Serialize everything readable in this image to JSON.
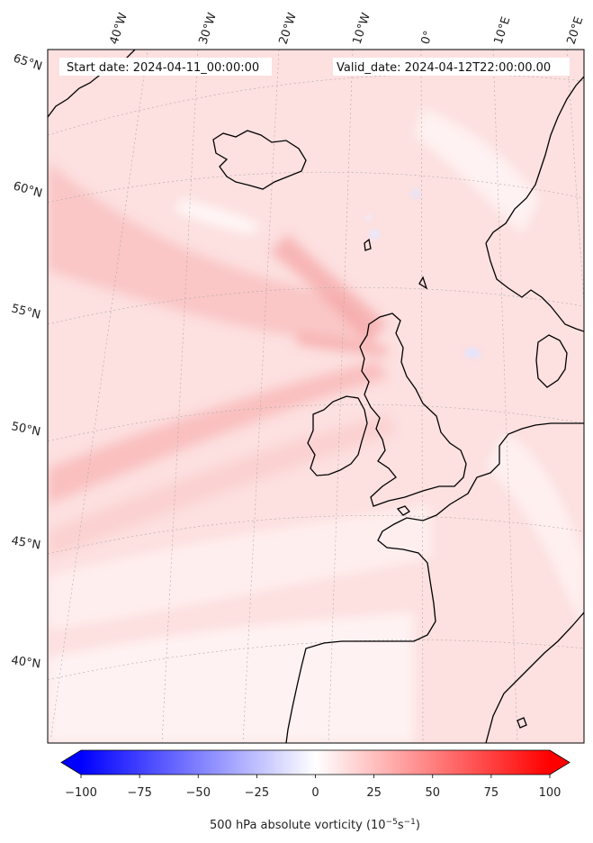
{
  "header": {
    "start_date": "Start date: 2024-04-11_00:00:00",
    "valid_date": "Valid_date: 2024-04-12T22:00:00.00"
  },
  "longitude_labels": [
    "40°W",
    "30°W",
    "20°W",
    "10°W",
    "0°",
    "10°E",
    "20°E"
  ],
  "latitude_labels": [
    "65°N",
    "60°N",
    "55°N",
    "50°N",
    "45°N",
    "40°N"
  ],
  "colorbar": {
    "range": [
      -100,
      100
    ],
    "ticks": [
      "−100",
      "−75",
      "−50",
      "−25",
      "0",
      "25",
      "50",
      "75",
      "100"
    ],
    "cmap": "bwr",
    "low_color": "#0000ff",
    "mid_color": "#ffffff",
    "high_color": "#ff0000",
    "label_text": "500 hPa absolute vorticity (10",
    "label_exp1": "−5",
    "label_mid": "s",
    "label_exp2": "−1",
    "label_end": ")"
  },
  "colors": {
    "background_field": "#fde0e0",
    "coastline": "#000000",
    "gridline": "#aaaaaa"
  }
}
